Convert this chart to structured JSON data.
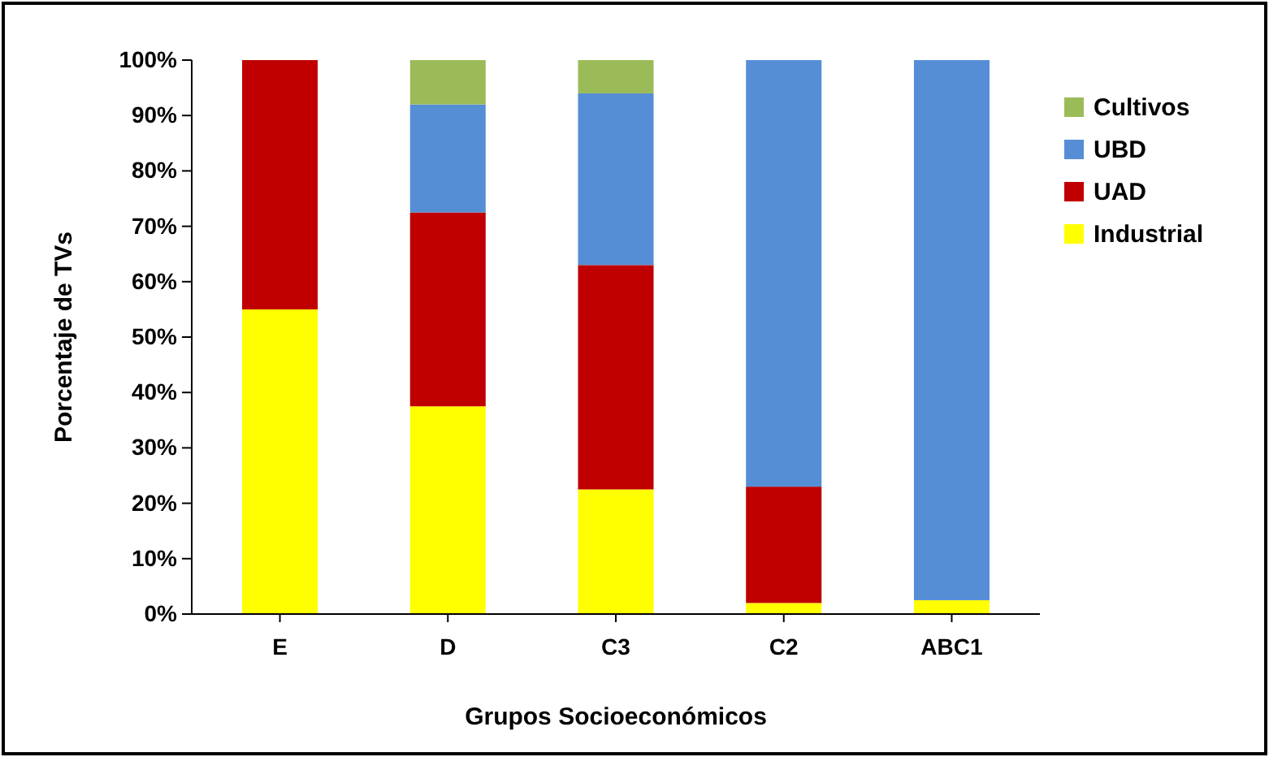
{
  "chart_data": {
    "type": "bar",
    "stacked": true,
    "xlabel": "Grupos Socioeconómicos",
    "ylabel": "Porcentaje de TVs",
    "categories": [
      "E",
      "D",
      "C3",
      "C2",
      "ABC1"
    ],
    "series": [
      {
        "name": "Industrial",
        "color": "#ffff00",
        "values": [
          55,
          37.5,
          22.5,
          2,
          2.5
        ]
      },
      {
        "name": "UAD",
        "color": "#c00000",
        "values": [
          45,
          35,
          40.5,
          21,
          0
        ]
      },
      {
        "name": "UBD",
        "color": "#558ed5",
        "values": [
          0,
          19.5,
          31,
          77,
          97.5
        ]
      },
      {
        "name": "Cultivos",
        "color": "#9bbb59",
        "values": [
          0,
          8,
          6,
          0,
          0
        ]
      }
    ],
    "ylim": [
      0,
      100
    ],
    "yticks": [
      {
        "value": 0,
        "label": "0%"
      },
      {
        "value": 10,
        "label": "10%"
      },
      {
        "value": 20,
        "label": "20%"
      },
      {
        "value": 30,
        "label": "30%"
      },
      {
        "value": 40,
        "label": "40%"
      },
      {
        "value": 50,
        "label": "50%"
      },
      {
        "value": 60,
        "label": "60%"
      },
      {
        "value": 70,
        "label": "70%"
      },
      {
        "value": 80,
        "label": "80%"
      },
      {
        "value": 90,
        "label": "90%"
      },
      {
        "value": 100,
        "label": "100%"
      }
    ],
    "legend": "right"
  }
}
